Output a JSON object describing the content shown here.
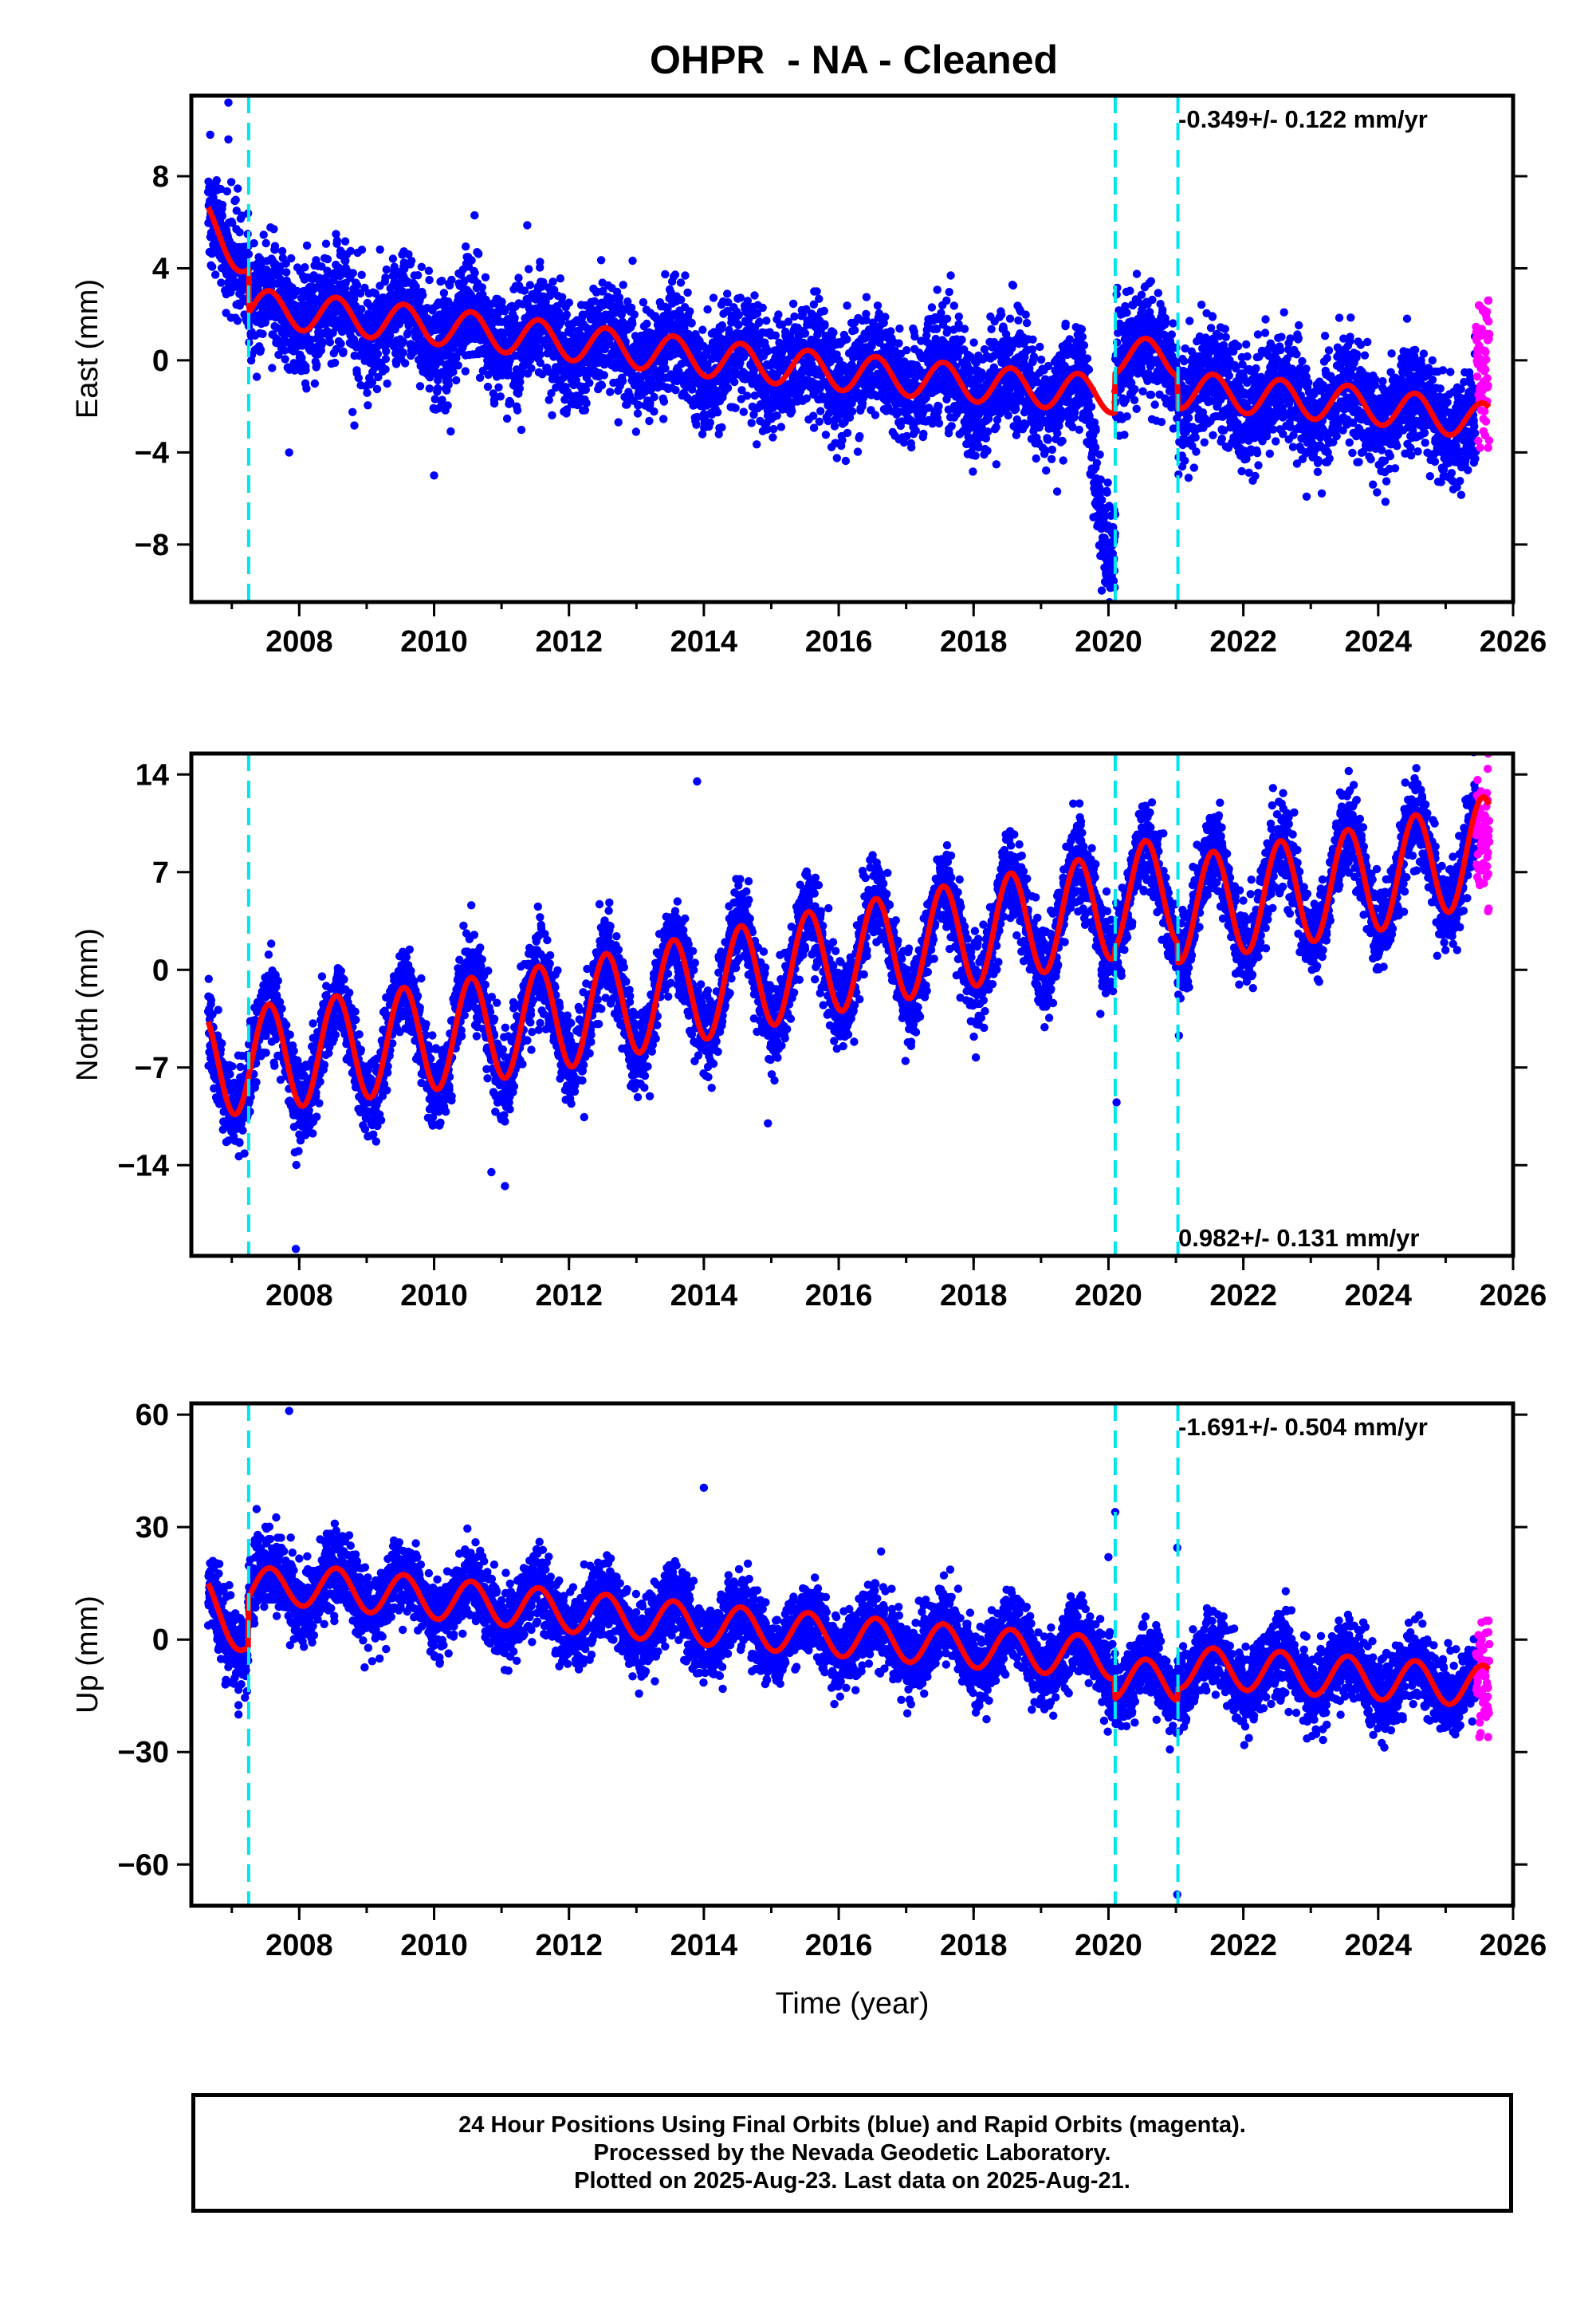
{
  "title": "OHPR  - NA - Cleaned",
  "footer": {
    "line1": "24 Hour Positions Using Final Orbits (blue) and Rapid Orbits (magenta).",
    "line2": "Processed by the Nevada Geodetic Laboratory.",
    "line3": "Plotted on 2025-Aug-23. Last data on 2025-Aug-21."
  },
  "colors": {
    "final_orbits": "#0000ff",
    "rapid_orbits": "#ff00ff",
    "model": "#ff0000",
    "steps": "#00e5ee"
  },
  "chart_data": [
    {
      "type": "scatter",
      "ylabel": "East (mm)",
      "xlabel": "",
      "xlim": [
        2006.4,
        2026.0
      ],
      "ylim": [
        -10.5,
        11.5
      ],
      "xticks": [
        2008,
        2010,
        2012,
        2014,
        2016,
        2018,
        2020,
        2022,
        2024,
        2026
      ],
      "yticks": [
        -8,
        -4,
        0,
        4,
        8
      ],
      "rate_label": "-0.349+/- 0.122 mm/yr",
      "rate_label_position": "top-right",
      "step_lines": [
        2007.25,
        2020.1,
        2021.03
      ],
      "model_knots": [
        [
          2006.65,
          6.0
        ],
        [
          2007.25,
          4.2
        ],
        [
          2007.26,
          2.3
        ],
        [
          2008,
          2.1
        ],
        [
          2010,
          1.5
        ],
        [
          2012,
          0.8
        ],
        [
          2014,
          0.1
        ],
        [
          2016,
          -0.5
        ],
        [
          2018,
          -1.0
        ],
        [
          2020.09,
          -1.5
        ],
        [
          2020.1,
          0.2
        ],
        [
          2021.02,
          0.1
        ],
        [
          2021.03,
          -1.3
        ],
        [
          2022,
          -1.5
        ],
        [
          2024,
          -2.0
        ],
        [
          2025.65,
          -2.7
        ]
      ],
      "seasonal_amplitude": 0.8,
      "scatter_sigma": 1.2,
      "anomaly": {
        "start": 2019.65,
        "end": 2020.1,
        "offset": -6.0
      },
      "outliers": [
        [
          2006.95,
          11.2
        ],
        [
          2006.95,
          9.6
        ],
        [
          2007.85,
          -4.0
        ],
        [
          2010.0,
          -5.0
        ],
        [
          2010.6,
          6.3
        ],
        [
          2019.9,
          -10.0
        ]
      ],
      "rapid": {
        "start": 2025.45,
        "end": 2025.65,
        "center": -0.5,
        "sigma": 1.8,
        "max": 2.6,
        "min": -3.8
      },
      "series": [
        {
          "name": "Final Orbits (blue)"
        },
        {
          "name": "Rapid Orbits (magenta)"
        }
      ]
    },
    {
      "type": "scatter",
      "ylabel": "North (mm)",
      "xlabel": "",
      "xlim": [
        2006.4,
        2026.0
      ],
      "ylim": [
        -20.5,
        15.5
      ],
      "xticks": [
        2008,
        2010,
        2012,
        2014,
        2016,
        2018,
        2020,
        2022,
        2024,
        2026
      ],
      "yticks": [
        -14,
        -7,
        0,
        7,
        14
      ],
      "rate_label": "0.982+/- 0.131 mm/yr",
      "rate_label_position": "bottom-right",
      "step_lines": [
        2007.25,
        2020.1,
        2021.03
      ],
      "model_knots": [
        [
          2006.65,
          -6.8
        ],
        [
          2008,
          -6.0
        ],
        [
          2010,
          -4.8
        ],
        [
          2012,
          -3.2
        ],
        [
          2014,
          -1.2
        ],
        [
          2016,
          0.8
        ],
        [
          2018,
          2.6
        ],
        [
          2020.09,
          4.6
        ],
        [
          2020.1,
          5.2
        ],
        [
          2021.02,
          5.7
        ],
        [
          2021.03,
          4.3
        ],
        [
          2022,
          5.0
        ],
        [
          2024,
          6.6
        ],
        [
          2025.65,
          8.7
        ]
      ],
      "seasonal_amplitude": 3.8,
      "scatter_sigma": 1.5,
      "anomaly": null,
      "outliers": [
        [
          2007.95,
          -20.0
        ],
        [
          2010.85,
          -14.5
        ],
        [
          2011.05,
          -15.5
        ],
        [
          2014.95,
          -11.0
        ],
        [
          2020.12,
          -9.5
        ],
        [
          2013.9,
          13.5
        ]
      ],
      "rapid": {
        "start": 2025.45,
        "end": 2025.65,
        "center": 9.5,
        "sigma": 2.4,
        "max": 15.5,
        "min": 4.2
      },
      "series": [
        {
          "name": "Final Orbits (blue)"
        },
        {
          "name": "Rapid Orbits (magenta)"
        }
      ]
    },
    {
      "type": "scatter",
      "ylabel": "Up (mm)",
      "xlabel": "Time (year)",
      "xlim": [
        2006.4,
        2026.0
      ],
      "ylim": [
        -71,
        63
      ],
      "xticks": [
        2008,
        2010,
        2012,
        2014,
        2016,
        2018,
        2020,
        2022,
        2024,
        2026
      ],
      "yticks": [
        -60,
        -30,
        0,
        30,
        60
      ],
      "rate_label": "-1.691+/- 0.504 mm/yr",
      "rate_label_position": "top-right",
      "step_lines": [
        2007.25,
        2020.1,
        2021.03
      ],
      "model_knots": [
        [
          2006.65,
          10.5
        ],
        [
          2007.24,
          0.0
        ],
        [
          2007.25,
          13.0
        ],
        [
          2008,
          14.5
        ],
        [
          2010,
          11.0
        ],
        [
          2012,
          7.5
        ],
        [
          2014,
          4.0
        ],
        [
          2016,
          1.0
        ],
        [
          2018,
          -2.0
        ],
        [
          2020.09,
          -5.0
        ],
        [
          2020.1,
          -10.5
        ],
        [
          2021.02,
          -11.0
        ],
        [
          2021.03,
          -7.5
        ],
        [
          2022,
          -8.0
        ],
        [
          2024,
          -10.5
        ],
        [
          2025.65,
          -12.5
        ]
      ],
      "seasonal_amplitude": 5.5,
      "scatter_sigma": 5.0,
      "anomaly": null,
      "outliers": [
        [
          2007.85,
          61.0
        ],
        [
          2014.0,
          40.5
        ],
        [
          2020.1,
          34.0
        ],
        [
          2021.02,
          24.5
        ],
        [
          2021.02,
          -68.0
        ],
        [
          2007.1,
          -20.0
        ],
        [
          2007.1,
          -17.5
        ],
        [
          2020.0,
          22.0
        ]
      ],
      "rapid": {
        "start": 2025.45,
        "end": 2025.65,
        "center": -10.0,
        "sigma": 8.0,
        "max": 5.0,
        "min": -26.0
      },
      "series": [
        {
          "name": "Final Orbits (blue)"
        },
        {
          "name": "Rapid Orbits (magenta)"
        }
      ]
    }
  ]
}
